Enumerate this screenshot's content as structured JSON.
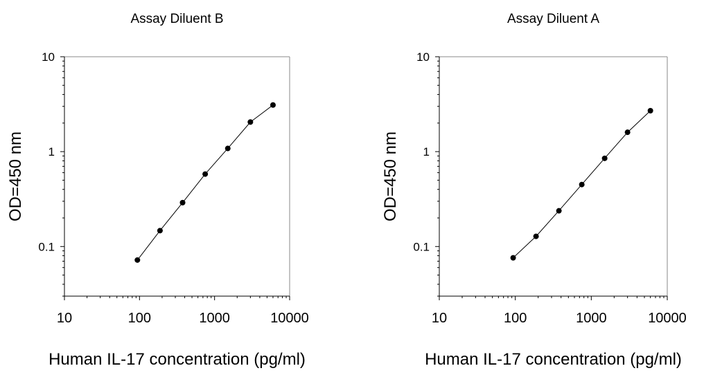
{
  "chart_data": [
    {
      "type": "line",
      "title": "Assay Diluent B",
      "xlabel": "Human IL-17 concentration (pg/ml)",
      "ylabel": "OD=450 nm",
      "x_scale": "log",
      "y_scale": "log",
      "xlim": [
        10,
        10000
      ],
      "ylim": [
        0.03,
        10
      ],
      "x_ticks": [
        "10",
        "100",
        "1000",
        "10000"
      ],
      "y_ticks": [
        "0.1",
        "1",
        "10"
      ],
      "grid": false,
      "series": [
        {
          "x": [
            93.75,
            187.5,
            375,
            750,
            1500,
            3000,
            6000
          ],
          "y": [
            0.072,
            0.147,
            0.29,
            0.58,
            1.08,
            2.05,
            3.1
          ]
        }
      ]
    },
    {
      "type": "line",
      "title": "Assay Diluent A",
      "xlabel": "Human IL-17 concentration (pg/ml)",
      "ylabel": "OD=450 nm",
      "x_scale": "log",
      "y_scale": "log",
      "xlim": [
        10,
        10000
      ],
      "ylim": [
        0.03,
        10
      ],
      "x_ticks": [
        "10",
        "100",
        "1000",
        "10000"
      ],
      "y_ticks": [
        "0.1",
        "1",
        "10"
      ],
      "grid": false,
      "series": [
        {
          "x": [
            93.75,
            187.5,
            375,
            750,
            1500,
            3000,
            6000
          ],
          "y": [
            0.076,
            0.128,
            0.238,
            0.45,
            0.85,
            1.6,
            2.7
          ]
        }
      ]
    }
  ]
}
